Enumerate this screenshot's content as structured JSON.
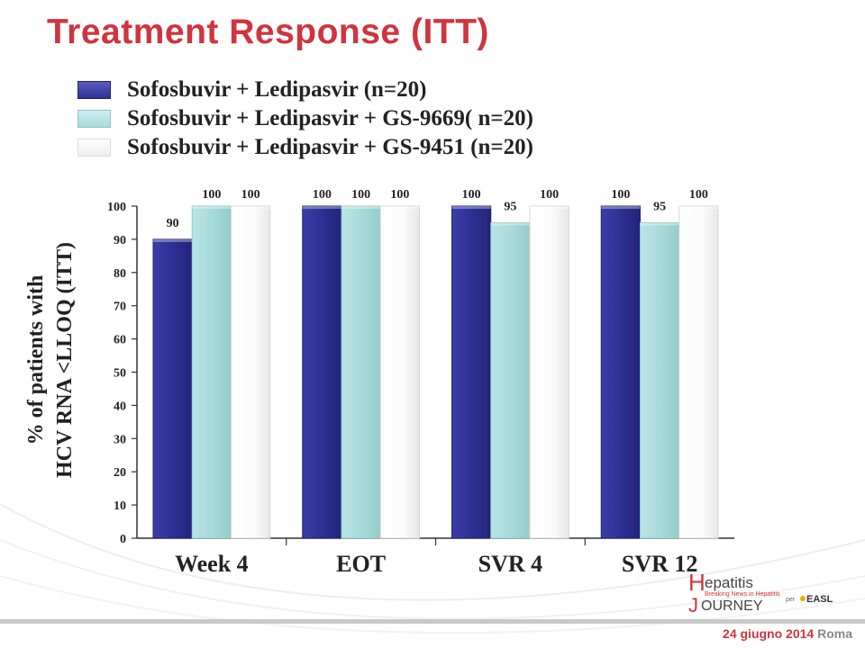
{
  "slide": {
    "title": "Treatment Response (ITT)"
  },
  "chart_data": {
    "type": "bar",
    "title": "",
    "ylabel_line1": "% of patients with",
    "ylabel_line2": "HCV RNA <LLOQ (ITT)",
    "ylim": [
      0,
      100
    ],
    "yticks": [
      0,
      10,
      20,
      30,
      40,
      50,
      60,
      70,
      80,
      90,
      100
    ],
    "categories": [
      "Week 4",
      "EOT",
      "SVR 4",
      "SVR 12"
    ],
    "series": [
      {
        "name": "Sofosbuvir + Ledipasvir (n=20)",
        "color": "#2e3092",
        "values": [
          90,
          100,
          100,
          100
        ],
        "labels": [
          "90",
          "100",
          "100",
          "100"
        ]
      },
      {
        "name": "Sofosbuvir + Ledipasvir + GS-9669( n=20)",
        "color": "#a9dbdb",
        "values": [
          100,
          100,
          95,
          95
        ],
        "labels": [
          "100",
          "100",
          "95",
          "95"
        ]
      },
      {
        "name": "Sofosbuvir + Ledipasvir + GS-9451 (n=20)",
        "color": "#ffffff",
        "values": [
          100,
          100,
          100,
          100
        ],
        "labels": [
          "100",
          "100",
          "100",
          "100"
        ]
      }
    ],
    "grid": false,
    "legend_position": "top"
  },
  "footer": {
    "date": "24 giugno 2014",
    "city": "Roma"
  },
  "logo": {
    "h_letter": "H",
    "word1": "epatitis",
    "tagline": "Breaking News in Hepatitis",
    "j_letter": "J",
    "word2": "OURNEY",
    "partner_prefix": "per",
    "partner": "EASL"
  }
}
